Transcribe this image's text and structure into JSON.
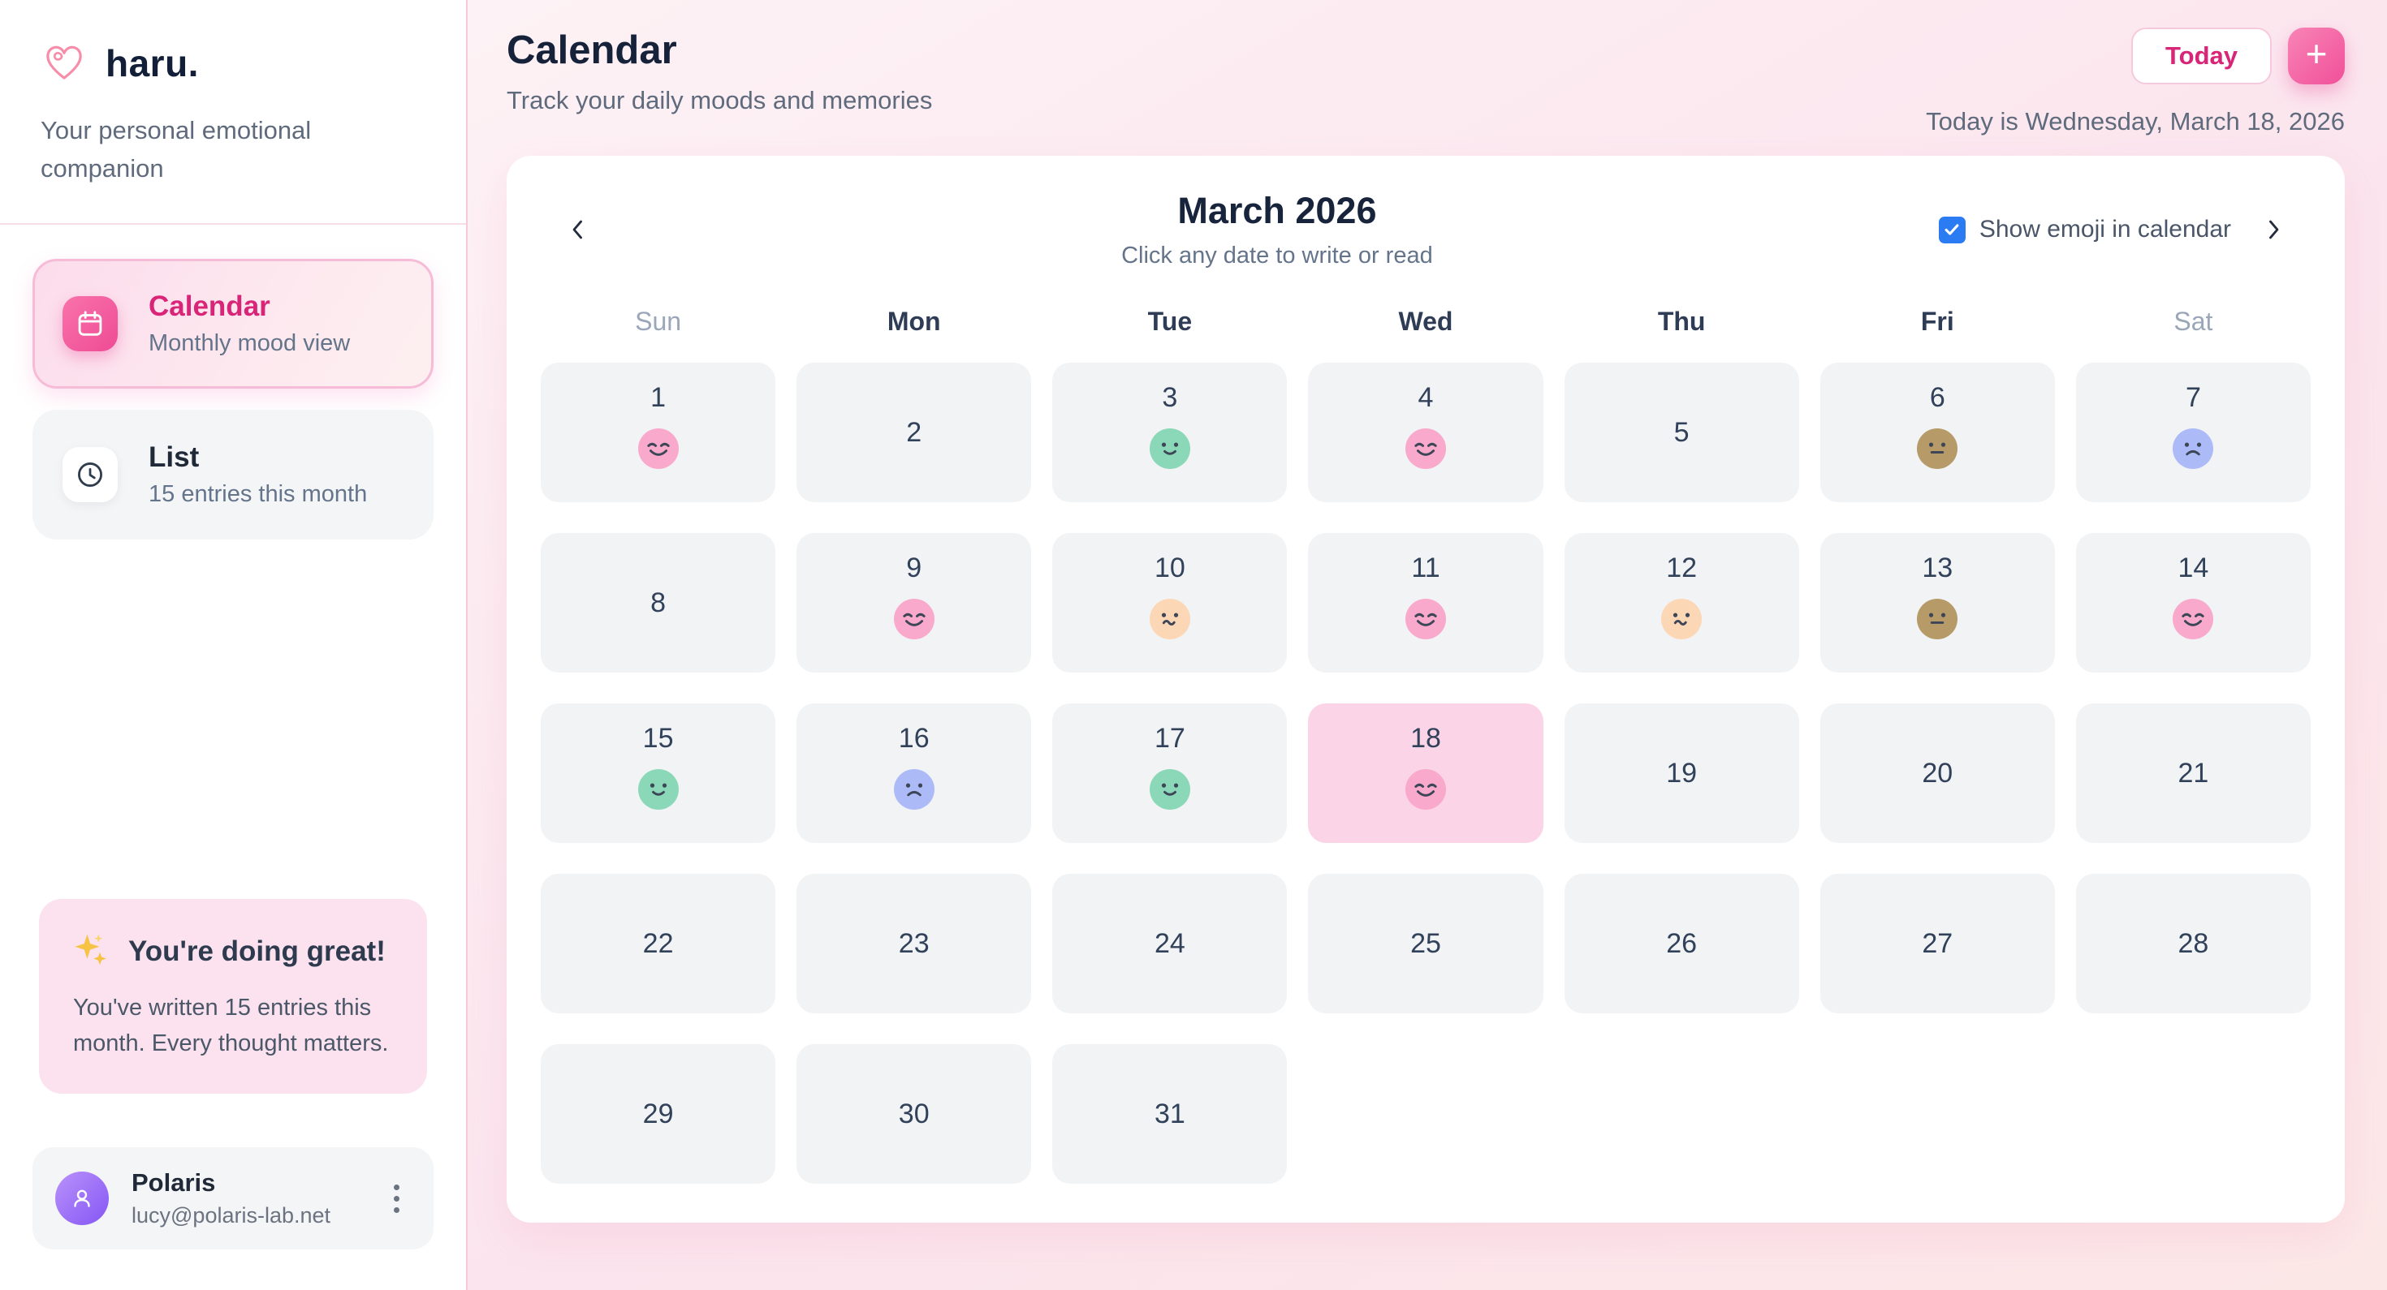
{
  "sidebar": {
    "logo": "haru.",
    "tagline": "Your personal emotional companion",
    "nav": [
      {
        "label": "Calendar",
        "sublabel": "Monthly mood view",
        "active": true
      },
      {
        "label": "List",
        "sublabel": "15 entries this month",
        "active": false
      }
    ],
    "encouragement": {
      "title": "You're doing great!",
      "body": "You've written 15 entries this month. Every thought matters."
    },
    "user": {
      "name": "Polaris",
      "email": "lucy@polaris-lab.net"
    }
  },
  "header": {
    "title": "Calendar",
    "subtitle": "Track your daily moods and memories",
    "today_button": "Today",
    "add_button": "+",
    "date_line": "Today is Wednesday, March 18, 2026"
  },
  "calendar": {
    "month_title": "March 2026",
    "hint": "Click any date to write or read",
    "show_emoji_label": "Show emoji in calendar",
    "show_emoji_checked": true,
    "weekdays": [
      {
        "label": "Sun",
        "weekend": true
      },
      {
        "label": "Mon",
        "weekend": false
      },
      {
        "label": "Tue",
        "weekend": false
      },
      {
        "label": "Wed",
        "weekend": false
      },
      {
        "label": "Thu",
        "weekend": false
      },
      {
        "label": "Fri",
        "weekend": false
      },
      {
        "label": "Sat",
        "weekend": true
      }
    ],
    "today": 18,
    "days": [
      {
        "day": 1,
        "mood": "relaxed"
      },
      {
        "day": 2
      },
      {
        "day": 3,
        "mood": "calm"
      },
      {
        "day": 4,
        "mood": "relaxed"
      },
      {
        "day": 5
      },
      {
        "day": 6,
        "mood": "neutral"
      },
      {
        "day": 7,
        "mood": "sad"
      },
      {
        "day": 8
      },
      {
        "day": 9,
        "mood": "relaxed"
      },
      {
        "day": 10,
        "mood": "uneasy"
      },
      {
        "day": 11,
        "mood": "relaxed"
      },
      {
        "day": 12,
        "mood": "uneasy"
      },
      {
        "day": 13,
        "mood": "neutral"
      },
      {
        "day": 14,
        "mood": "relaxed"
      },
      {
        "day": 15,
        "mood": "calm"
      },
      {
        "day": 16,
        "mood": "sad"
      },
      {
        "day": 17,
        "mood": "calm"
      },
      {
        "day": 18,
        "mood": "relaxed"
      },
      {
        "day": 19
      },
      {
        "day": 20
      },
      {
        "day": 21
      },
      {
        "day": 22
      },
      {
        "day": 23
      },
      {
        "day": 24
      },
      {
        "day": 25
      },
      {
        "day": 26
      },
      {
        "day": 27
      },
      {
        "day": 28
      },
      {
        "day": 29
      },
      {
        "day": 30
      },
      {
        "day": 31
      }
    ]
  },
  "moods": {
    "relaxed": {
      "color": "#f9a9cb",
      "face": "closed-smile"
    },
    "calm": {
      "color": "#8bd8b9",
      "face": "dot-smile"
    },
    "uneasy": {
      "color": "#fcd7b6",
      "face": "dot-wavy"
    },
    "neutral": {
      "color": "#b69a68",
      "face": "dot-flat"
    },
    "sad": {
      "color": "#adbaf8",
      "face": "dot-frown"
    }
  },
  "colors": {
    "accent_pink": "#ec4899",
    "active_text": "#d92577",
    "today_cell": "#fbd5e7",
    "cell_bg": "#f1f3f5",
    "checkbox_blue": "#2b7bf3",
    "face_stroke": "#3d4656"
  }
}
